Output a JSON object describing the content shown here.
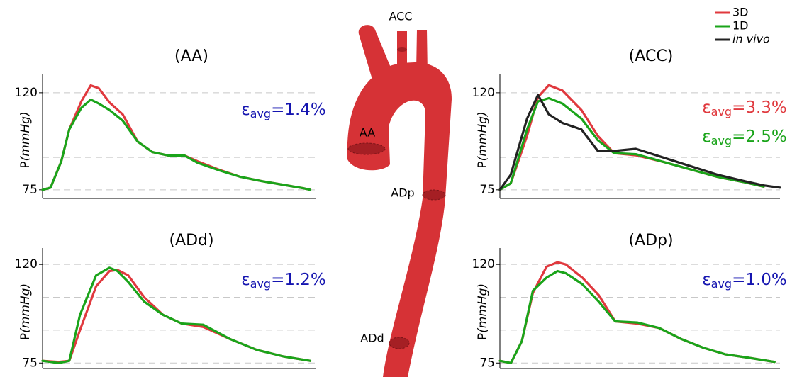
{
  "chart_data": [
    {
      "type": "line",
      "title": "(AA)",
      "ylabel": "P",
      "ylabel_unit": "(mmHg)",
      "x": [
        0,
        0.03,
        0.07,
        0.1,
        0.145,
        0.18,
        0.21,
        0.25,
        0.3,
        0.355,
        0.41,
        0.47,
        0.53,
        0.58,
        0.66,
        0.74,
        0.82,
        0.895,
        0.975,
        1.0
      ],
      "xlim": [
        0,
        1.02
      ],
      "ylim": [
        71,
        128.5
      ],
      "yticks": [
        75,
        120
      ],
      "ygrid": [
        75,
        90,
        105,
        120
      ],
      "series": [
        {
          "name": "3D",
          "color": "#e0393e",
          "values": [
            75,
            76,
            88.2,
            103,
            116,
            123.4,
            122.1,
            115.5,
            109.9,
            97.4,
            92.5,
            90.9,
            90.9,
            88.2,
            84.3,
            81,
            79,
            77.4,
            75.7,
            75
          ]
        },
        {
          "name": "1D",
          "color": "#1aa41a",
          "values": [
            75,
            76,
            88.2,
            103,
            113,
            116.8,
            115,
            112,
            107,
            97.4,
            92.5,
            90.9,
            90.9,
            87.5,
            84,
            81,
            79,
            77.4,
            75.7,
            75
          ]
        }
      ],
      "annotations": [
        {
          "symbol": "ε",
          "subscript": "avg",
          "text": "=1.4%",
          "color": "#1515b0"
        }
      ]
    },
    {
      "type": "line",
      "title": "(ACC)",
      "ylabel": "P",
      "ylabel_unit": "(mmHg)",
      "x": [
        0,
        0.04,
        0.1,
        0.14,
        0.18,
        0.23,
        0.3,
        0.36,
        0.42,
        0.5,
        0.6,
        0.7,
        0.8,
        0.9,
        0.97,
        1.03
      ],
      "xlim": [
        0,
        1.03
      ],
      "ylim": [
        71,
        128.5
      ],
      "yticks": [
        75,
        120
      ],
      "ygrid": [
        75,
        90,
        105,
        120
      ],
      "series": [
        {
          "name": "3D",
          "color": "#e0393e",
          "values": [
            75,
            78,
            100,
            118,
            123.5,
            121,
            112,
            100,
            92,
            91,
            88,
            84.5,
            81,
            78.5,
            76.5,
            null
          ]
        },
        {
          "name": "1D",
          "color": "#1aa41a",
          "values": [
            75,
            78,
            103,
            116,
            117.5,
            115,
            108,
            98,
            92,
            91.5,
            88,
            84.5,
            81,
            78.5,
            76.5,
            null
          ]
        },
        {
          "name": "in vivo",
          "color": "#222222",
          "values": [
            75,
            82,
            108,
            119,
            110,
            106,
            103,
            93,
            93,
            94,
            90,
            86,
            82,
            79,
            77,
            76
          ]
        }
      ],
      "annotations": [
        {
          "symbol": "ε",
          "subscript": "avg",
          "text": "=3.3%",
          "color": "#e0393e"
        },
        {
          "symbol": "ε",
          "subscript": "avg",
          "text": "=2.5%",
          "color": "#1aa41a"
        }
      ]
    },
    {
      "type": "line",
      "title": "(ADd)",
      "ylabel": "P",
      "ylabel_unit": "(mmHg)",
      "x": [
        0,
        0.06,
        0.1,
        0.14,
        0.2,
        0.25,
        0.28,
        0.32,
        0.38,
        0.45,
        0.52,
        0.6,
        0.7,
        0.8,
        0.9,
        1.0
      ],
      "xlim": [
        0,
        1.02
      ],
      "ylim": [
        72.5,
        127.5
      ],
      "yticks": [
        75,
        120
      ],
      "ygrid": [
        75,
        90,
        105,
        120
      ],
      "series": [
        {
          "name": "3D",
          "color": "#e0393e",
          "values": [
            76,
            75.5,
            76,
            90,
            110,
            117,
            117.5,
            115,
            105,
            97,
            93,
            91.5,
            86,
            81,
            78,
            76
          ]
        },
        {
          "name": "1D",
          "color": "#1aa41a",
          "values": [
            76,
            75,
            76,
            97,
            115,
            118.5,
            117,
            112,
            103,
            97,
            93,
            92.5,
            86,
            81,
            78,
            76
          ]
        }
      ],
      "annotations": [
        {
          "symbol": "ε",
          "subscript": "avg",
          "text": "=1.2%",
          "color": "#1515b0"
        }
      ]
    },
    {
      "type": "line",
      "title": "(ADp)",
      "ylabel": "P",
      "ylabel_unit": "(mmHg)",
      "x": [
        0,
        0.04,
        0.08,
        0.12,
        0.17,
        0.21,
        0.24,
        0.3,
        0.36,
        0.42,
        0.5,
        0.58,
        0.66,
        0.74,
        0.82,
        0.9,
        1.0
      ],
      "xlim": [
        0,
        1.02
      ],
      "ylim": [
        72.5,
        127.5
      ],
      "yticks": [
        75,
        120
      ],
      "ygrid": [
        75,
        90,
        105,
        120
      ],
      "series": [
        {
          "name": "3D",
          "color": "#e0393e",
          "values": [
            76,
            75,
            85,
            107,
            119,
            121,
            120,
            114,
            106,
            94,
            93,
            91,
            86,
            82,
            79,
            77.5,
            75.5
          ]
        },
        {
          "name": "1D",
          "color": "#1aa41a",
          "values": [
            76,
            75,
            85,
            108,
            114,
            117,
            116,
            111,
            103,
            94,
            93.5,
            91,
            86,
            82,
            79,
            77.5,
            75.5
          ]
        }
      ],
      "annotations": [
        {
          "symbol": "ε",
          "subscript": "avg",
          "text": "=1.0%",
          "color": "#1515b0"
        }
      ]
    }
  ],
  "diagram": {
    "labels": [
      "ACC",
      "AA",
      "ADp",
      "ADd"
    ]
  }
}
